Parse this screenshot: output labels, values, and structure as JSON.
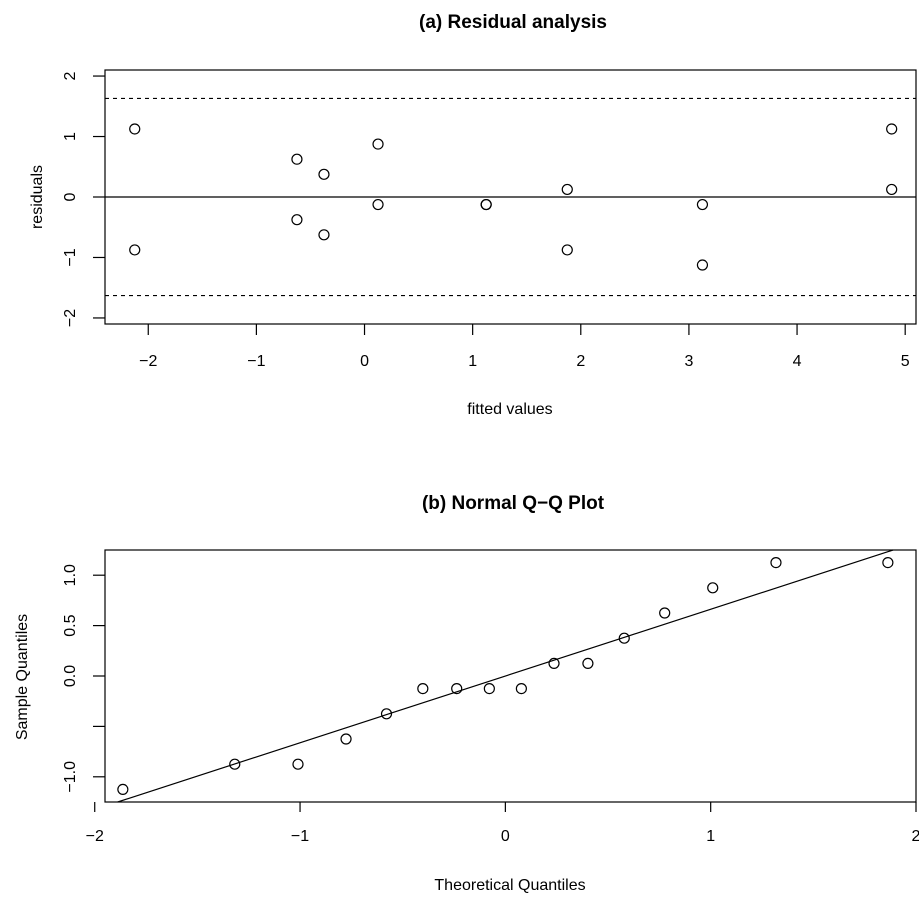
{
  "chart_data": [
    {
      "type": "scatter",
      "title": "(a) Residual analysis",
      "xlabel": "fitted values",
      "ylabel": "residuals",
      "xlim": [
        -2.4,
        5.1
      ],
      "ylim": [
        -2.1,
        2.1
      ],
      "x_ticks": [
        -2,
        -1,
        0,
        1,
        2,
        3,
        4,
        5
      ],
      "x_tick_labels": [
        "−2",
        "−1",
        "0",
        "1",
        "2",
        "3",
        "4",
        "5"
      ],
      "y_ticks": [
        -2,
        -1,
        0,
        1,
        2
      ],
      "y_tick_labels": [
        "−2",
        "−1",
        "0",
        "1",
        "2"
      ],
      "points": [
        {
          "x": -2.125,
          "y": 1.125
        },
        {
          "x": -2.125,
          "y": -0.875
        },
        {
          "x": -0.625,
          "y": 0.625
        },
        {
          "x": -0.625,
          "y": -0.375
        },
        {
          "x": -0.375,
          "y": 0.375
        },
        {
          "x": -0.375,
          "y": -0.625
        },
        {
          "x": 0.125,
          "y": 0.875
        },
        {
          "x": 0.125,
          "y": -0.125
        },
        {
          "x": 1.125,
          "y": -0.125
        },
        {
          "x": 1.125,
          "y": -0.125
        },
        {
          "x": 1.875,
          "y": 0.125
        },
        {
          "x": 1.875,
          "y": -0.875
        },
        {
          "x": 3.125,
          "y": -0.125
        },
        {
          "x": 3.125,
          "y": -1.125
        },
        {
          "x": 4.875,
          "y": 1.125
        },
        {
          "x": 4.875,
          "y": 0.125
        }
      ],
      "reference_lines": [
        {
          "y": 0,
          "style": "solid"
        },
        {
          "y": 1.63,
          "style": "dashed"
        },
        {
          "y": -1.63,
          "style": "dashed"
        }
      ],
      "grid": false
    },
    {
      "type": "scatter",
      "title": "(b) Normal Q−Q Plot",
      "xlabel": "Theoretical Quantiles",
      "ylabel": "Sample Quantiles",
      "xlim": [
        -1.95,
        2.0
      ],
      "ylim": [
        -1.25,
        1.25
      ],
      "x_ticks": [
        -2,
        -1,
        0,
        1,
        2
      ],
      "x_tick_labels": [
        "−2",
        "−1",
        "0",
        "1",
        "2"
      ],
      "y_ticks": [
        -1.0,
        -0.5,
        0.0,
        0.5,
        1.0
      ],
      "y_tick_labels": [
        "−1.0",
        "",
        "0.0",
        "0.5",
        "1.0"
      ],
      "points": [
        {
          "x": -1.863,
          "y": -1.125
        },
        {
          "x": -1.318,
          "y": -0.875
        },
        {
          "x": -1.01,
          "y": -0.875
        },
        {
          "x": -0.776,
          "y": -0.625
        },
        {
          "x": -0.579,
          "y": -0.375
        },
        {
          "x": -0.402,
          "y": -0.125
        },
        {
          "x": -0.237,
          "y": -0.125
        },
        {
          "x": -0.078,
          "y": -0.125
        },
        {
          "x": 0.078,
          "y": -0.125
        },
        {
          "x": 0.237,
          "y": 0.125
        },
        {
          "x": 0.402,
          "y": 0.125
        },
        {
          "x": 0.579,
          "y": 0.375
        },
        {
          "x": 0.776,
          "y": 0.625
        },
        {
          "x": 1.01,
          "y": 0.875
        },
        {
          "x": 1.318,
          "y": 1.125
        },
        {
          "x": 1.863,
          "y": 1.125
        }
      ],
      "qq_line": {
        "intercept": 0.0,
        "slope": 0.662
      },
      "grid": false
    }
  ]
}
